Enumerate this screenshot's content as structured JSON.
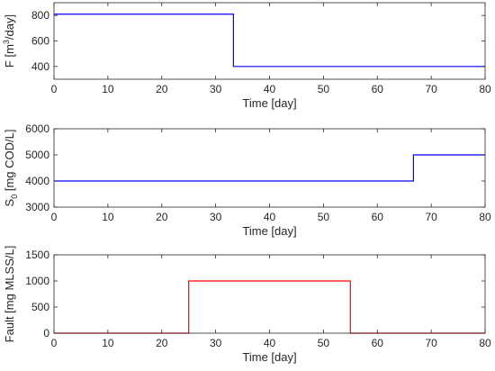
{
  "chart_data": [
    {
      "type": "line",
      "xlabel": "Time [day]",
      "ylabel_main": "F [m",
      "ylabel_sup": "3",
      "ylabel_tail": "/day]",
      "xlim": [
        0,
        80
      ],
      "ylim": [
        300,
        900
      ],
      "xticks": [
        0,
        10,
        20,
        30,
        40,
        50,
        60,
        70,
        80
      ],
      "yticks": [
        400,
        600,
        800
      ],
      "grid": false,
      "series": [
        {
          "color": "#0000ff",
          "x": [
            0,
            33.3,
            33.3,
            80
          ],
          "y": [
            810,
            810,
            400,
            400
          ]
        }
      ]
    },
    {
      "type": "line",
      "xlabel": "Time [day]",
      "ylabel_main": "S",
      "ylabel_sub": "0",
      "ylabel_tail": " [mg COD/L]",
      "xlim": [
        0,
        80
      ],
      "ylim": [
        3000,
        6000
      ],
      "xticks": [
        0,
        10,
        20,
        30,
        40,
        50,
        60,
        70,
        80
      ],
      "yticks": [
        3000,
        4000,
        5000,
        6000
      ],
      "grid": false,
      "series": [
        {
          "color": "#0000ff",
          "x": [
            0,
            66.7,
            66.7,
            80
          ],
          "y": [
            4000,
            4000,
            5000,
            5000
          ]
        }
      ]
    },
    {
      "type": "line",
      "xlabel": "Time [day]",
      "ylabel_main": "Fault [mg MLSS/L]",
      "xlim": [
        0,
        80
      ],
      "ylim": [
        0,
        1500
      ],
      "xticks": [
        0,
        10,
        20,
        30,
        40,
        50,
        60,
        70,
        80
      ],
      "yticks": [
        0,
        500,
        1000,
        1500
      ],
      "grid": false,
      "series": [
        {
          "color": "#ff0000",
          "x": [
            0,
            25,
            25,
            55,
            55,
            80
          ],
          "y": [
            0,
            0,
            1000,
            1000,
            0,
            0
          ]
        }
      ]
    }
  ]
}
